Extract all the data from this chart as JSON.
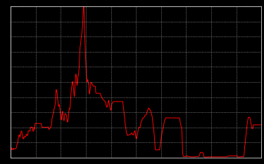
{
  "background_color": "#000000",
  "line_color": "#ff0000",
  "grid_color": "#ffffff",
  "line_width": 0.7,
  "figsize": [
    3.75,
    2.34
  ],
  "dpi": 100,
  "ylim": [
    0,
    20
  ],
  "grid_linestyle": ":",
  "grid_linewidth": 0.6,
  "xtick_count": 10,
  "ytick_count": 10,
  "ffr_monthly": [
    1.13,
    1.22,
    1.29,
    1.06,
    1.03,
    1.06,
    1.06,
    1.22,
    1.06,
    1.16,
    1.18,
    1.16,
    1.14,
    1.14,
    1.17,
    1.19,
    1.29,
    1.55,
    1.75,
    1.79,
    1.98,
    2.42,
    2.71,
    2.92,
    3.0,
    3.0,
    2.65,
    2.93,
    3.06,
    3.35,
    3.5,
    3.5,
    3.17,
    3.0,
    2.55,
    2.61,
    2.46,
    2.6,
    2.73,
    2.8,
    2.73,
    2.73,
    2.77,
    2.97,
    3.08,
    2.94,
    2.97,
    2.92,
    3.0,
    3.5,
    3.5,
    3.54,
    3.5,
    3.5,
    3.5,
    4.0,
    4.0,
    4.0,
    4.0,
    4.0,
    4.0,
    4.0,
    3.5,
    3.5,
    3.5,
    3.97,
    3.72,
    4.13,
    4.5,
    4.5,
    4.5,
    4.5,
    4.5,
    4.5,
    4.5,
    4.5,
    4.5,
    4.5,
    4.5,
    4.5,
    4.5,
    4.5,
    4.5,
    4.5,
    4.5,
    4.5,
    4.19,
    4.0,
    4.0,
    4.0,
    4.0,
    4.0,
    4.0,
    4.0,
    4.0,
    4.0,
    4.0,
    4.0,
    4.0,
    4.0,
    4.0,
    4.0,
    4.0,
    4.0,
    4.06,
    3.88,
    3.71,
    3.72,
    3.79,
    3.84,
    4.0,
    4.0,
    4.08,
    4.19,
    4.61,
    5.16,
    5.41,
    5.63,
    5.75,
    5.98,
    6.24,
    6.52,
    6.54,
    6.91,
    7.15,
    7.76,
    8.98,
    9.0,
    8.73,
    8.57,
    7.92,
    7.5,
    7.17,
    6.79,
    6.85,
    7.0,
    6.71,
    6.33,
    5.91,
    5.47,
    5.0,
    5.0,
    5.53,
    5.87,
    6.12,
    5.63,
    5.18,
    5.14,
    4.88,
    5.19,
    5.7,
    5.76,
    5.8,
    5.75,
    5.63,
    5.62,
    5.18,
    4.75,
    4.69,
    4.79,
    5.24,
    5.82,
    6.28,
    6.49,
    6.42,
    6.67,
    7.22,
    8.1,
    8.74,
    9.2,
    9.5,
    9.96,
    10.05,
    9.81,
    9.43,
    8.92,
    8.22,
    8.08,
    8.96,
    9.7,
    10.61,
    11.04,
    10.86,
    10.55,
    9.54,
    9.74,
    10.07,
    10.8,
    10.87,
    11.39,
    11.93,
    12.92,
    14.18,
    14.78,
    14.99,
    15.52,
    16.0,
    16.38,
    16.57,
    17.19,
    17.78,
    19.04,
    19.77,
    20.0,
    19.08,
    17.19,
    15.61,
    14.23,
    13.22,
    12.26,
    11.01,
    10.52,
    10.0,
    10.22,
    10.31,
    10.06,
    9.66,
    9.62,
    8.59,
    8.42,
    8.8,
    9.25,
    9.56,
    9.93,
    9.94,
    9.84,
    9.73,
    9.72,
    9.56,
    9.45,
    9.43,
    9.46,
    9.43,
    9.47,
    9.43,
    9.37,
    8.65,
    8.51,
    8.5,
    8.5,
    8.5,
    8.5,
    8.5,
    8.5,
    8.5,
    8.5,
    8.5,
    8.5,
    8.5,
    8.33,
    8.27,
    8.11,
    8.0,
    7.94,
    7.84,
    7.76,
    7.73,
    7.65,
    7.6,
    7.56,
    7.52,
    7.44,
    7.41,
    7.37,
    7.18,
    6.94,
    6.76,
    6.65,
    6.75,
    6.92,
    7.22,
    7.48,
    7.59,
    7.34,
    7.04,
    6.75,
    6.55,
    6.37,
    6.25,
    6.5,
    6.94,
    7.13,
    7.22,
    7.3,
    7.36,
    7.37,
    7.41,
    7.41,
    7.41,
    7.41,
    7.41,
    7.41,
    7.41,
    7.41,
    7.41,
    7.41,
    7.41,
    7.41,
    7.41,
    7.41,
    7.41,
    7.41,
    7.41,
    7.41,
    7.41,
    7.41,
    7.41,
    7.41,
    7.41,
    7.41,
    7.41,
    7.41,
    6.94,
    6.53,
    6.14,
    5.66,
    5.18,
    4.72,
    4.33,
    4.0,
    3.68,
    3.25,
    3.17,
    3.09,
    2.92,
    2.96,
    2.97,
    3.0,
    3.0,
    3.0,
    3.0,
    3.0,
    3.03,
    3.09,
    3.14,
    3.22,
    3.25,
    3.18,
    3.04,
    2.97,
    2.97,
    3.09,
    3.26,
    3.41,
    3.54,
    3.45,
    3.06,
    2.74,
    2.5,
    2.5,
    2.6,
    2.97,
    3.15,
    3.45,
    3.71,
    3.93,
    3.99,
    4.01,
    3.99,
    3.99,
    4.27,
    4.54,
    4.71,
    4.81,
    4.94,
    5.09,
    5.19,
    5.22,
    5.22,
    5.3,
    5.35,
    5.37,
    5.51,
    5.64,
    5.63,
    5.63,
    5.65,
    5.75,
    6.0,
    6.13,
    6.24,
    6.35,
    6.52,
    6.54,
    6.46,
    6.46,
    6.26,
    6.27,
    6.24,
    6.0,
    5.86,
    5.71,
    5.5,
    5.24,
    4.75,
    4.25,
    3.98,
    3.5,
    3.14,
    2.49,
    1.73,
    1.13,
    0.99,
    1.0,
    1.0,
    1.0,
    1.0,
    1.0,
    1.0,
    1.0,
    1.0,
    1.0,
    1.0,
    1.01,
    1.35,
    1.76,
    2.05,
    2.48,
    2.75,
    2.97,
    3.25,
    3.57,
    3.73,
    3.97,
    4.25,
    4.5,
    4.72,
    4.96,
    5.02,
    5.12,
    5.24,
    5.25,
    5.25,
    5.25,
    5.25,
    5.25,
    5.25,
    5.25,
    5.25,
    5.25,
    5.25,
    5.25,
    5.25,
    5.25,
    5.25,
    5.25,
    5.25,
    5.25,
    5.25,
    5.25,
    5.25,
    5.25,
    5.25,
    5.25,
    5.25,
    5.25,
    5.25,
    5.25,
    5.25,
    5.25,
    5.25,
    5.25,
    5.25,
    5.25,
    5.25,
    5.25,
    5.25,
    5.25,
    5.24,
    5.04,
    4.75,
    4.5,
    4.25,
    4.1,
    3.94,
    3.25,
    2.0,
    0.5,
    0.25,
    0.12,
    0.09,
    0.08,
    0.1,
    0.13,
    0.13,
    0.11,
    0.16,
    0.19,
    0.19,
    0.14,
    0.15,
    0.22,
    0.16,
    0.12,
    0.14,
    0.11,
    0.09,
    0.1,
    0.09,
    0.07,
    0.07,
    0.07,
    0.07,
    0.07,
    0.07,
    0.07,
    0.07,
    0.08,
    0.07,
    0.07,
    0.07,
    0.09,
    0.1,
    0.12,
    0.12,
    0.12,
    0.12,
    0.12,
    0.12,
    0.12,
    0.12,
    0.12,
    0.14,
    0.22,
    0.37,
    0.54,
    0.66,
    0.66,
    0.66,
    0.7,
    0.7,
    0.66,
    0.62,
    0.62,
    0.56,
    0.41,
    0.09,
    0.05,
    0.05,
    0.05,
    0.05,
    0.05,
    0.05,
    0.05,
    0.05,
    0.05,
    0.05,
    0.07,
    0.09,
    0.07,
    0.07,
    0.08,
    0.07,
    0.07,
    0.07,
    0.07,
    0.07,
    0.07,
    0.07,
    0.07,
    0.07,
    0.07,
    0.07,
    0.07,
    0.07,
    0.07,
    0.07,
    0.07,
    0.07,
    0.07,
    0.07,
    0.07,
    0.07,
    0.08,
    0.07,
    0.07,
    0.07,
    0.07,
    0.07,
    0.07,
    0.07,
    0.07,
    0.07,
    0.08,
    0.08,
    0.08,
    0.08,
    0.08,
    0.08,
    0.08,
    0.08,
    0.08,
    0.08,
    0.08,
    0.08,
    0.08,
    0.08,
    0.08,
    0.08,
    0.08,
    0.09,
    0.14,
    0.16,
    0.17,
    0.18,
    0.19,
    0.2,
    0.2,
    0.2,
    0.2,
    0.2,
    0.2,
    0.2,
    0.2,
    0.2,
    0.2,
    0.2,
    0.2,
    0.2,
    0.2,
    0.2,
    0.2,
    0.2,
    0.2,
    0.2,
    0.2,
    0.2,
    0.2,
    0.2,
    0.2,
    0.06,
    0.05,
    0.06,
    0.06,
    0.06,
    0.07,
    0.09,
    0.09,
    0.1,
    0.1,
    0.09,
    0.1,
    0.09,
    0.09,
    0.08,
    0.09,
    0.12,
    0.34,
    0.83,
    1.58,
    1.73,
    2.33,
    2.92,
    3.08,
    3.83,
    4.1,
    4.57,
    4.83,
    5.08,
    5.33,
    5.33,
    5.33,
    5.33,
    5.33,
    5.08,
    4.83,
    4.58,
    4.33,
    4.1,
    3.83,
    3.83,
    3.83,
    4.06,
    4.33,
    4.33,
    4.33,
    4.33,
    4.33,
    4.33,
    4.33,
    4.33,
    4.33,
    4.33,
    4.33,
    4.33,
    4.33,
    4.33,
    4.33,
    4.33,
    4.33,
    4.33,
    4.33,
    4.33,
    4.33,
    4.33,
    4.33
  ]
}
